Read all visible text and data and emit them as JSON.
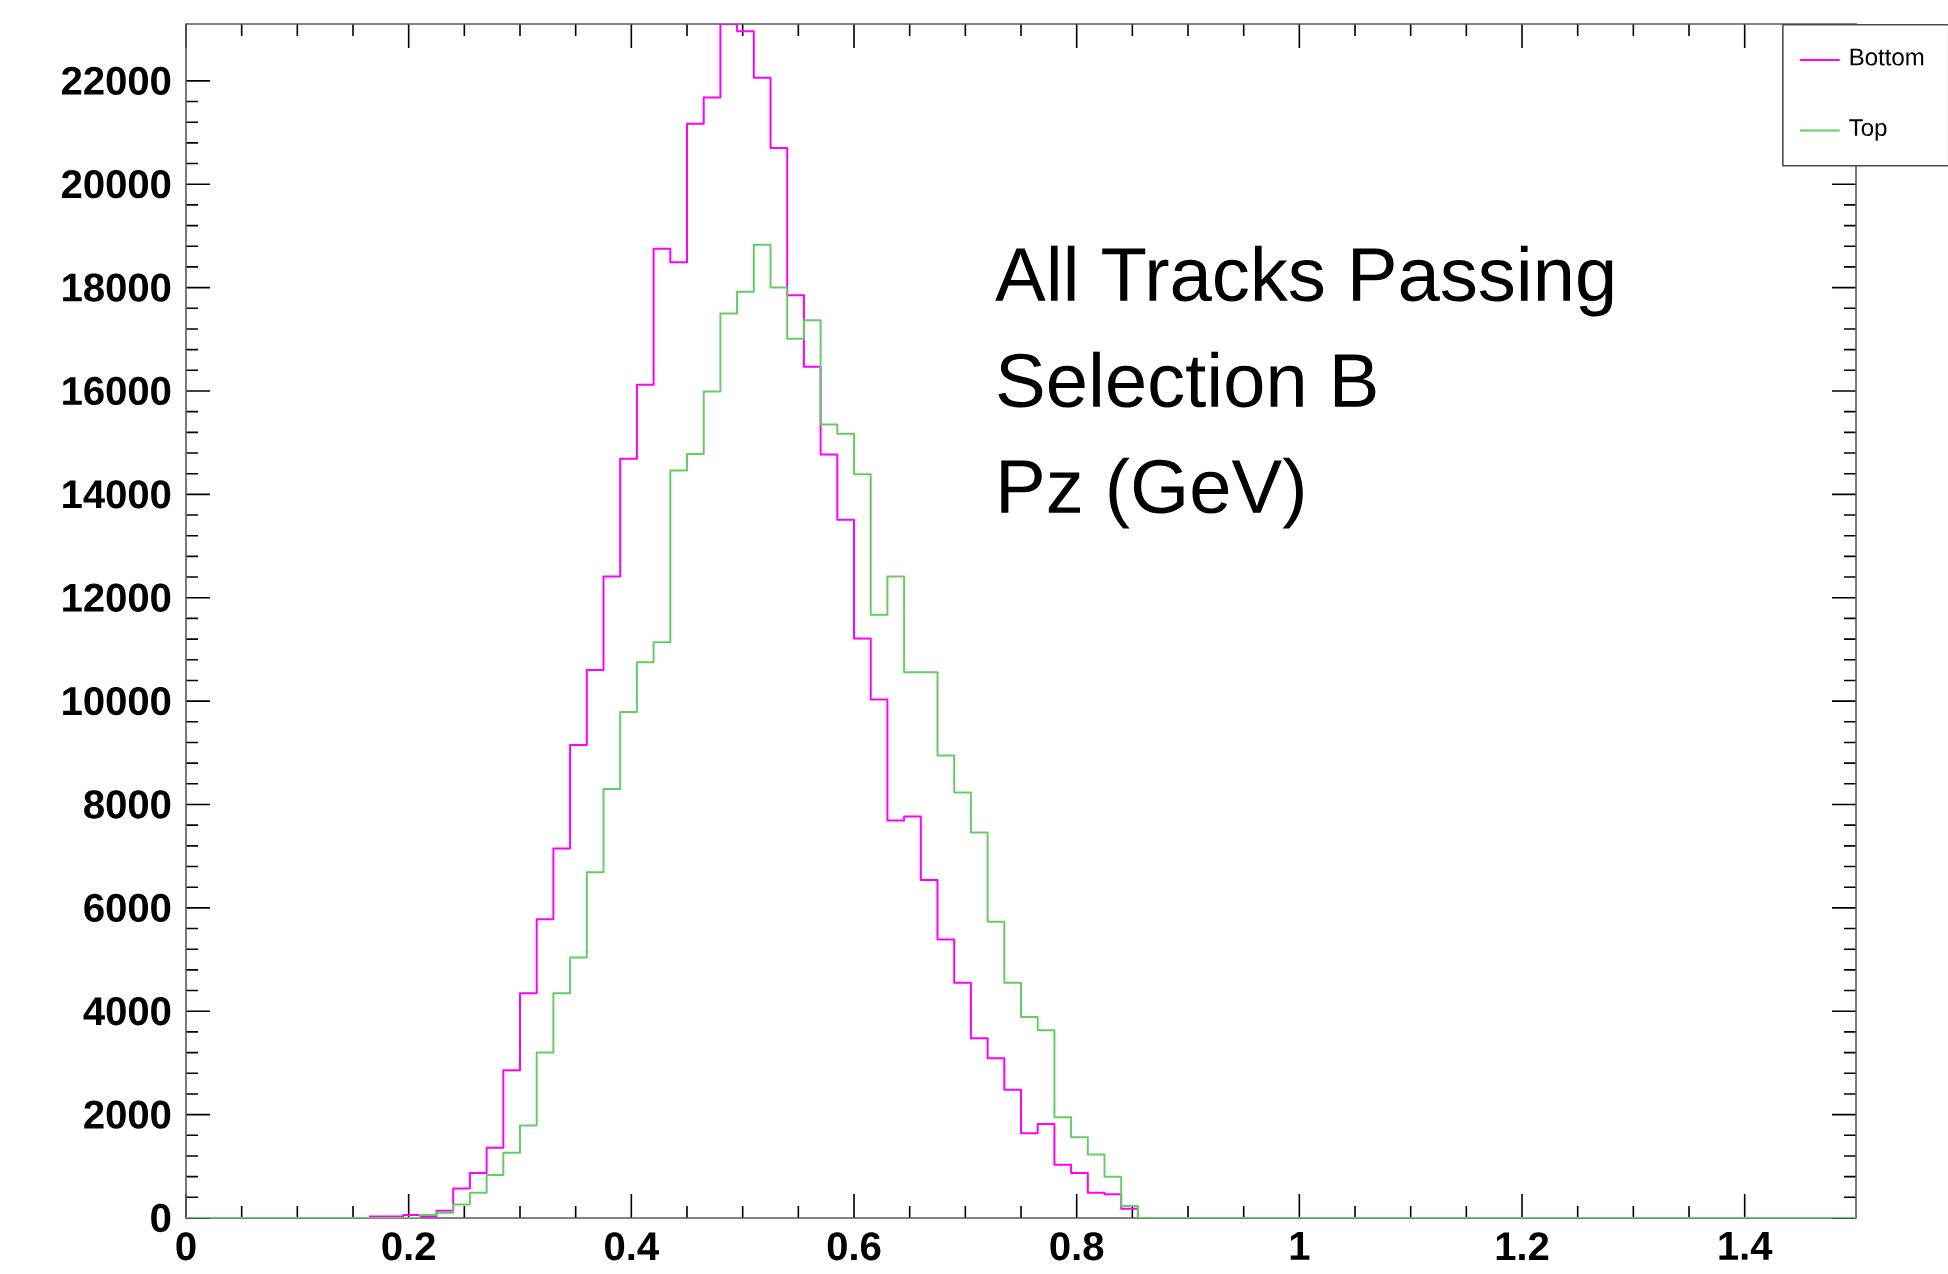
{
  "chart_data": {
    "type": "histogram",
    "bins": [
      0,
      0.015,
      0.03,
      0.045,
      0.06,
      0.075,
      0.09,
      0.105,
      0.12,
      0.135,
      0.15,
      0.165,
      0.18,
      0.195,
      0.21,
      0.225,
      0.24,
      0.255,
      0.27,
      0.285,
      0.3,
      0.315,
      0.33,
      0.345,
      0.36,
      0.375,
      0.39,
      0.405,
      0.42,
      0.435,
      0.45,
      0.465,
      0.48,
      0.495,
      0.51,
      0.525,
      0.54,
      0.555,
      0.57,
      0.585,
      0.6,
      0.615,
      0.63,
      0.645,
      0.66,
      0.675,
      0.69,
      0.705,
      0.72,
      0.735,
      0.75,
      0.765,
      0.78,
      0.795,
      0.81,
      0.825,
      0.84,
      0.855,
      0.87,
      0.885,
      0.9,
      0.915,
      0.93,
      0.945,
      0.96,
      0.975,
      0.99,
      1.005,
      1.02,
      1.035,
      1.05,
      1.065,
      1.08,
      1.095,
      1.11,
      1.125,
      1.14,
      1.155,
      1.17,
      1.185,
      1.2,
      1.215,
      1.23,
      1.245,
      1.26,
      1.275,
      1.29,
      1.305,
      1.32,
      1.335,
      1.35,
      1.365,
      1.38,
      1.395,
      1.41,
      1.425,
      1.44,
      1.455,
      1.47,
      1.485,
      1.5
    ],
    "series": [
      {
        "name": "Bottom",
        "color": "#ff00ff",
        "values": [
          0,
          0,
          0,
          0,
          0,
          0,
          0,
          0,
          0,
          0,
          0,
          30,
          30,
          60,
          30,
          140,
          570,
          870,
          1360,
          2860,
          4350,
          5780,
          7150,
          9150,
          10600,
          12410,
          14690,
          16120,
          18750,
          18490,
          21170,
          21680,
          23100,
          22960,
          22060,
          20700,
          17850,
          16470,
          14770,
          13510,
          11210,
          10030,
          7690,
          7770,
          6540,
          5390,
          4550,
          3480,
          3090,
          2480,
          1640,
          1820,
          1030,
          870,
          490,
          460,
          180,
          0,
          0,
          0,
          0,
          0,
          0,
          0,
          0,
          0,
          0,
          0,
          0,
          0,
          0,
          0,
          0,
          0,
          0,
          0,
          0,
          0,
          0,
          0,
          0,
          0,
          0,
          0,
          0,
          0,
          0,
          0,
          0,
          0,
          0,
          0,
          0,
          0,
          0,
          0,
          0,
          0,
          0,
          0
        ]
      },
      {
        "name": "Top",
        "color": "#66cc66",
        "values": [
          0,
          0,
          0,
          0,
          0,
          0,
          0,
          0,
          0,
          0,
          0,
          0,
          0,
          0,
          60,
          100,
          260,
          490,
          830,
          1260,
          1790,
          3200,
          4350,
          5040,
          6690,
          8300,
          9790,
          10750,
          11140,
          14460,
          14780,
          15990,
          17500,
          17920,
          18830,
          18000,
          17010,
          17370,
          15350,
          15170,
          14390,
          11670,
          12410,
          10560,
          10560,
          8950,
          8230,
          7460,
          5730,
          4550,
          3890,
          3630,
          1950,
          1560,
          1230,
          800,
          230,
          0,
          0,
          0,
          0,
          0,
          0,
          0,
          0,
          0,
          0,
          0,
          0,
          0,
          0,
          0,
          0,
          0,
          0,
          0,
          0,
          0,
          0,
          0,
          0,
          0,
          0,
          0,
          0,
          0,
          0,
          0,
          0,
          0,
          0,
          0,
          0,
          0,
          0,
          0,
          0,
          0,
          0,
          0
        ]
      }
    ],
    "xlim": [
      0,
      1.5
    ],
    "xticks": [
      0,
      0.2,
      0.4,
      0.6,
      0.8,
      1,
      1.2,
      1.4
    ],
    "ylim": [
      0,
      23100
    ],
    "yticks": [
      0,
      2000,
      4000,
      6000,
      8000,
      10000,
      12000,
      14000,
      16000,
      18000,
      20000,
      22000
    ],
    "legend": "top right",
    "grid": false,
    "annotations": [
      "All Tracks Passing",
      "Selection B",
      "Pz (GeV)"
    ]
  }
}
